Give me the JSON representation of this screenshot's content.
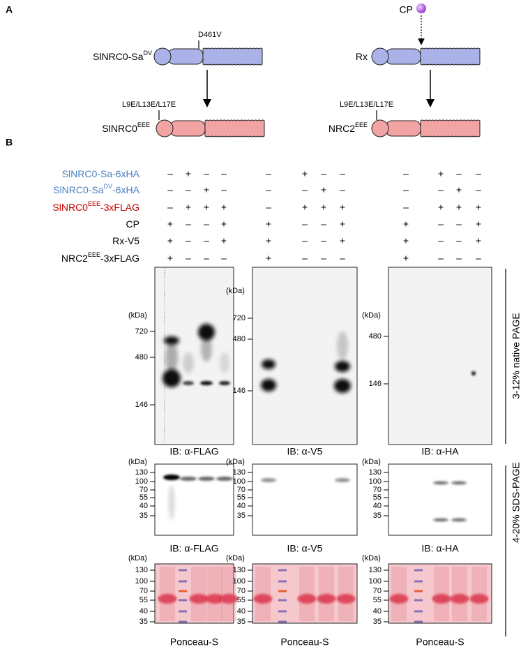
{
  "panel_a": {
    "label": "A",
    "sensor_left": {
      "name": {
        "base": "SlNRC0-Sa",
        "sup": "DV"
      },
      "mutation": "D461V"
    },
    "helper_left": {
      "name": {
        "base": "SlNRC0",
        "sup": "EEE"
      },
      "mutation": "L9E/L13E/L17E"
    },
    "effector": "CP",
    "sensor_right": {
      "name": {
        "base": "Rx"
      }
    },
    "helper_right": {
      "name": {
        "base": "NRC2",
        "sup": "EEE"
      },
      "mutation": "L9E/L13E/L17E"
    }
  },
  "panel_b": {
    "label": "B",
    "treatments": [
      {
        "name": {
          "base": "SlNRC0-Sa-6xHA"
        },
        "color": "#4a7fc1",
        "signs": [
          "–",
          "+",
          "–",
          "–",
          "–",
          "+",
          "–",
          "–",
          "–",
          "+",
          "–",
          "–"
        ]
      },
      {
        "name": {
          "base": "SlNRC0-Sa",
          "sup": "DV",
          "suffix": "-6xHA"
        },
        "color": "#4a7fc1",
        "signs": [
          "–",
          "–",
          "+",
          "–",
          "–",
          "–",
          "+",
          "–",
          "–",
          "–",
          "+",
          "–"
        ]
      },
      {
        "name": {
          "base": "SlNRC0",
          "sup": "EEE",
          "suffix": "-3xFLAG"
        },
        "color": "#c00000",
        "signs": [
          "–",
          "+",
          "+",
          "+",
          "–",
          "+",
          "+",
          "+",
          "–",
          "+",
          "+",
          "+"
        ]
      },
      {
        "name": {
          "base": "CP"
        },
        "color": "#000000",
        "signs": [
          "+",
          "–",
          "–",
          "+",
          "+",
          "–",
          "–",
          "+",
          "+",
          "–",
          "–",
          "+"
        ]
      },
      {
        "name": {
          "base": "Rx-V5"
        },
        "color": "#000000",
        "signs": [
          "+",
          "–",
          "–",
          "+",
          "+",
          "–",
          "–",
          "+",
          "+",
          "–",
          "–",
          "+"
        ]
      },
      {
        "name": {
          "base": "NRC2",
          "sup": "EEE",
          "suffix": "-3xFLAG"
        },
        "color": "#000000",
        "signs": [
          "+",
          "–",
          "–",
          "–",
          "+",
          "–",
          "–",
          "–",
          "+",
          "–",
          "–",
          "–"
        ]
      }
    ],
    "native": {
      "label": "3-12% native PAGE",
      "blots": [
        {
          "unit": "(kDa)",
          "markers": [
            720,
            480,
            146
          ],
          "caption": "IB: α-FLAG"
        },
        {
          "unit": "(kDa)",
          "markers": [
            720,
            480,
            146
          ],
          "caption": "IB: α-V5"
        },
        {
          "unit": "(kDa)",
          "markers": [
            480,
            146
          ],
          "caption": "IB: α-HA"
        }
      ]
    },
    "sds": {
      "label": "4-20% SDS-PAGE",
      "blots": [
        {
          "unit": "(kDa)",
          "markers": [
            130,
            100,
            70,
            55,
            40,
            35
          ],
          "caption": "IB: α-FLAG"
        },
        {
          "unit": "(kDa)",
          "markers": [
            130,
            100,
            70,
            55,
            40,
            35
          ],
          "caption": "IB: α-V5"
        },
        {
          "unit": "(kDa)",
          "markers": [
            130,
            100,
            70,
            55,
            40,
            35
          ],
          "caption": "IB: α-HA"
        }
      ],
      "ponceau": [
        {
          "unit": "(kDa)",
          "markers": [
            130,
            100,
            70,
            55,
            40,
            35
          ],
          "caption": "Ponceau-S"
        },
        {
          "unit": "(kDa)",
          "markers": [
            130,
            100,
            70,
            55,
            40,
            35
          ],
          "caption": "Ponceau-S"
        },
        {
          "unit": "(kDa)",
          "markers": [
            130,
            100,
            70,
            55,
            40,
            35
          ],
          "caption": "Ponceau-S"
        }
      ]
    }
  }
}
